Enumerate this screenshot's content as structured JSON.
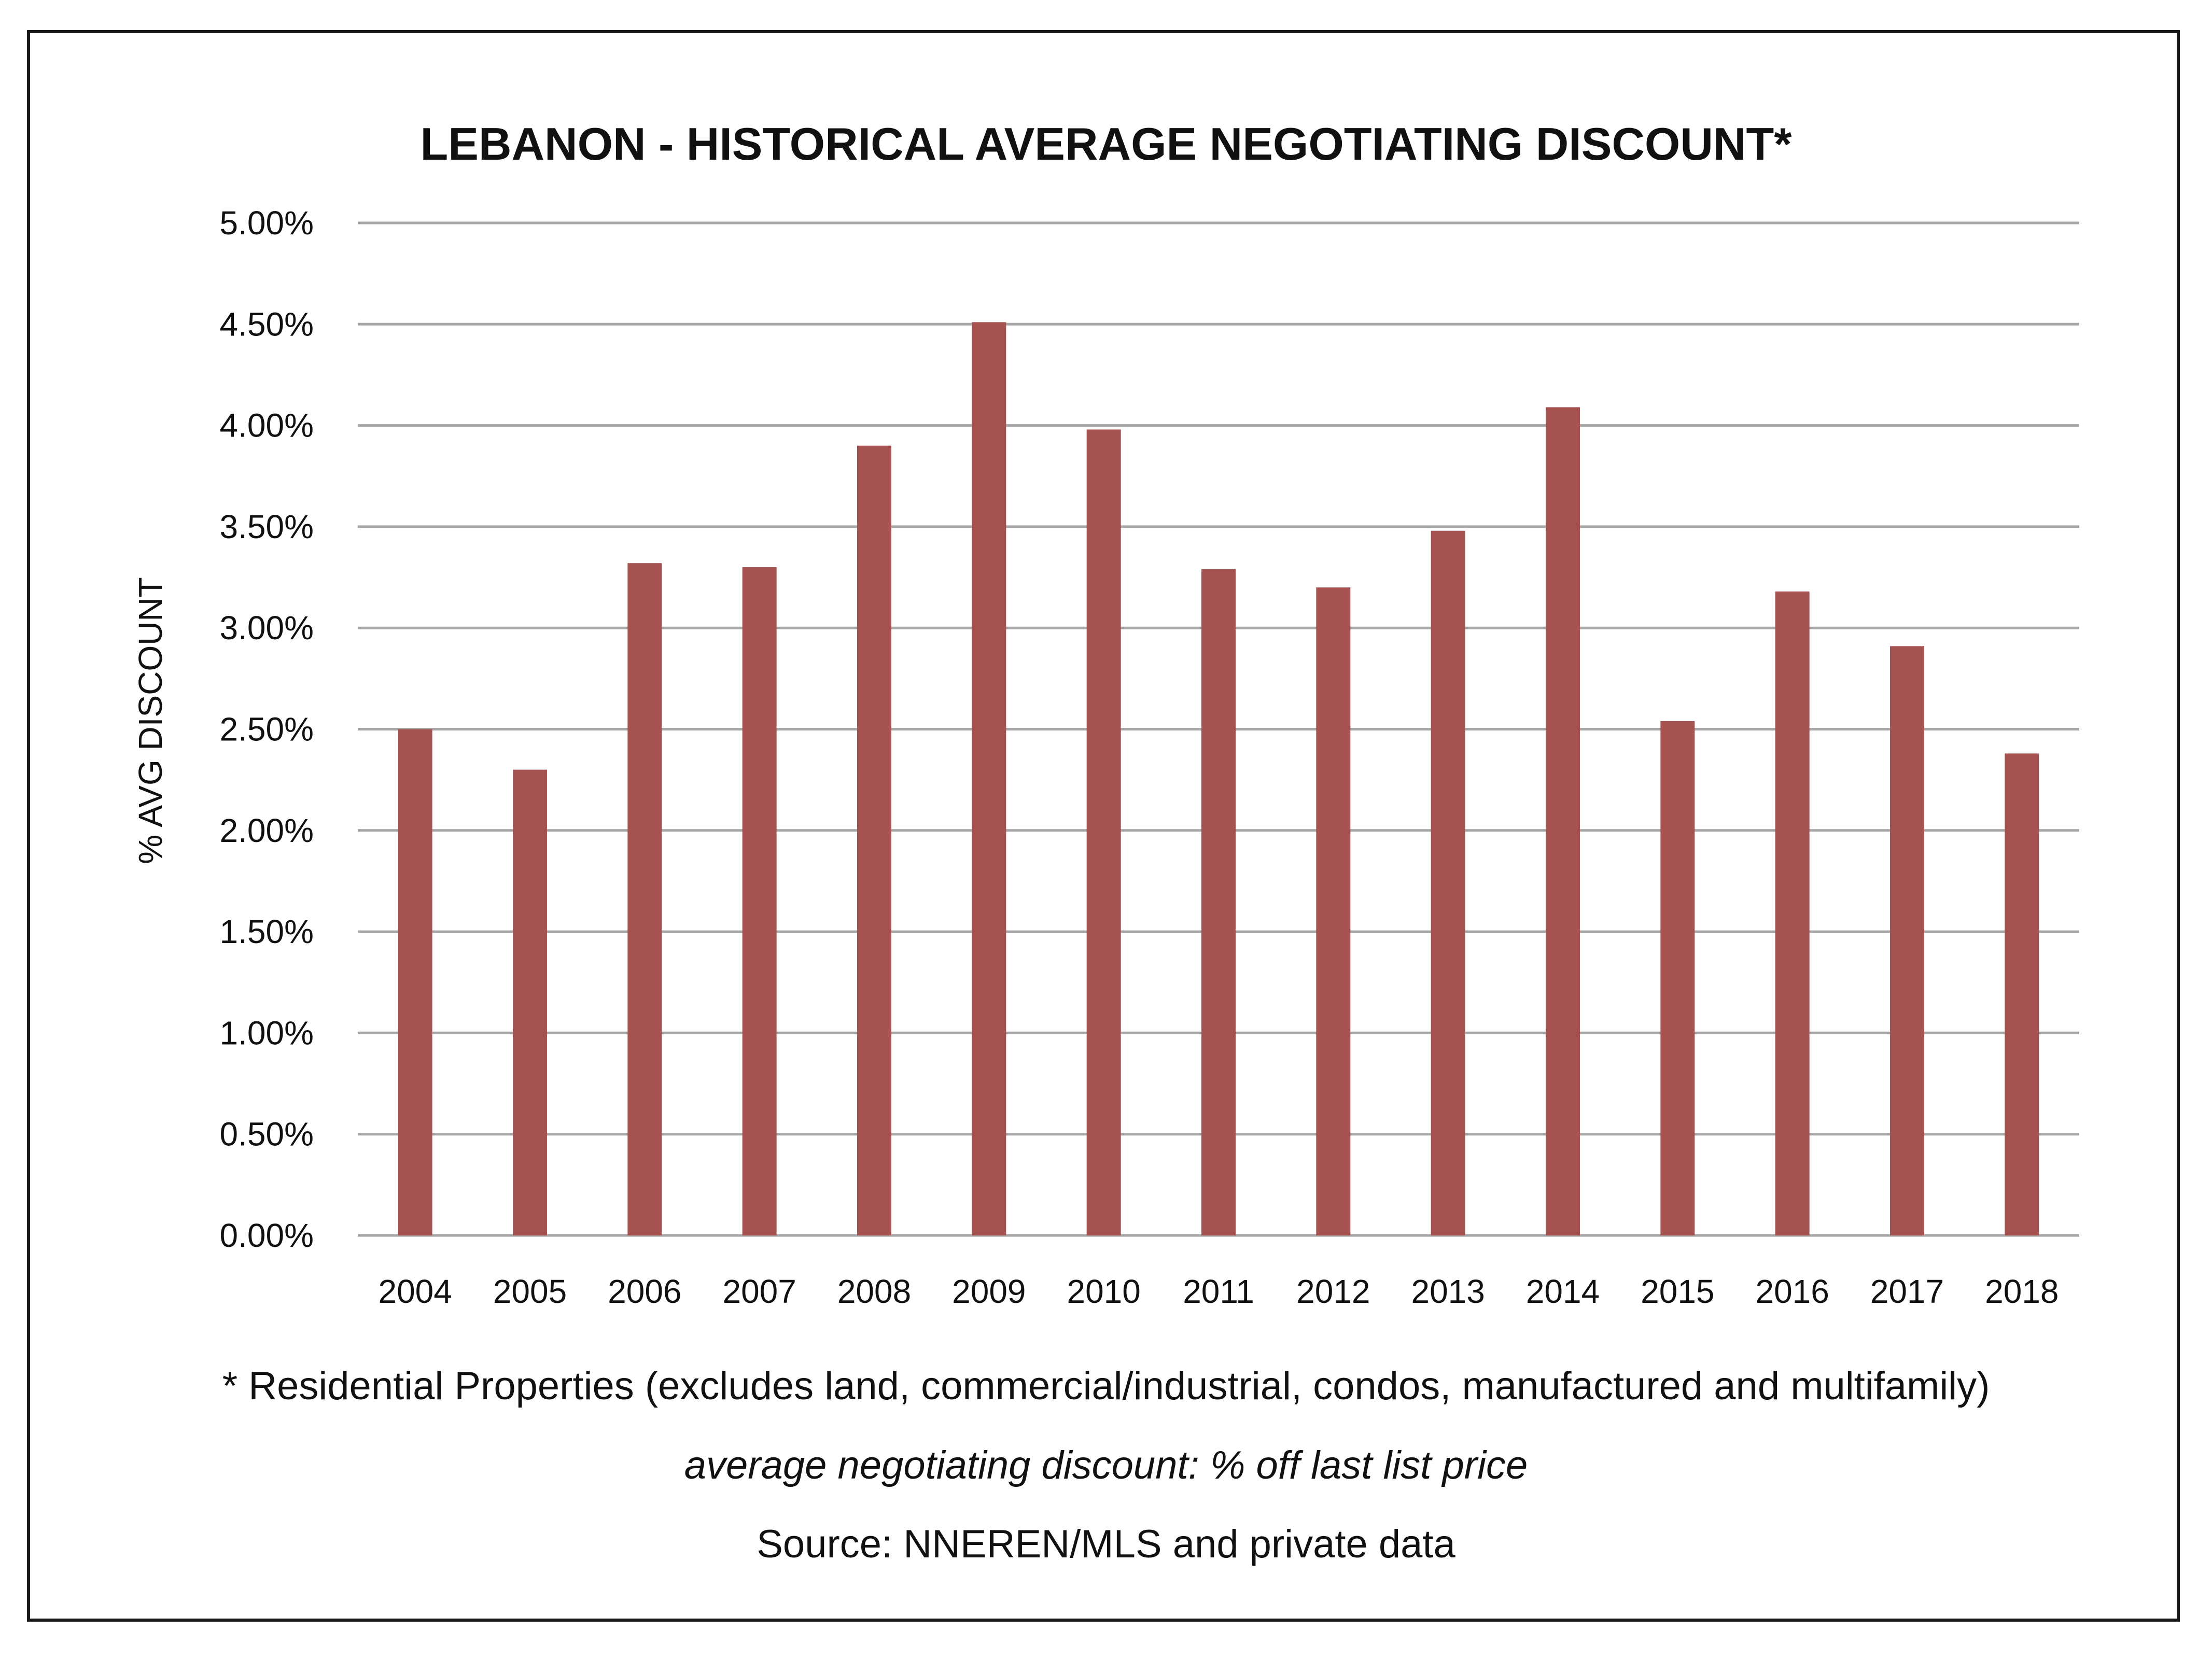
{
  "chart_data": {
    "type": "bar",
    "title": "LEBANON - HISTORICAL AVERAGE NEGOTIATING DISCOUNT*",
    "xlabel": "",
    "ylabel": "% AVG DISCOUNT",
    "categories": [
      "2004",
      "2005",
      "2006",
      "2007",
      "2008",
      "2009",
      "2010",
      "2011",
      "2012",
      "2013",
      "2014",
      "2015",
      "2016",
      "2017",
      "2018"
    ],
    "values": [
      2.5,
      2.3,
      3.32,
      3.3,
      3.9,
      4.51,
      3.98,
      3.29,
      3.2,
      3.48,
      4.09,
      2.54,
      3.18,
      2.91,
      2.38
    ],
    "ylim": [
      0,
      5
    ],
    "yticks": [
      0,
      0.5,
      1,
      1.5,
      2,
      2.5,
      3,
      3.5,
      4,
      4.5,
      5
    ],
    "ytick_labels": [
      "0.00%",
      "0.50%",
      "1.00%",
      "1.50%",
      "2.00%",
      "2.50%",
      "3.00%",
      "3.50%",
      "4.00%",
      "4.50%",
      "5.00%"
    ],
    "grid": true,
    "bar_color": "#a65250",
    "grid_color": "#a6a6a6"
  },
  "notes": {
    "residential": "* Residential Properties (excludes land, commercial/industrial, condos, manufactured and multifamily)",
    "definition": "average negotiating discount: % off last list price",
    "source": "Source: NNEREN/MLS and private data"
  }
}
